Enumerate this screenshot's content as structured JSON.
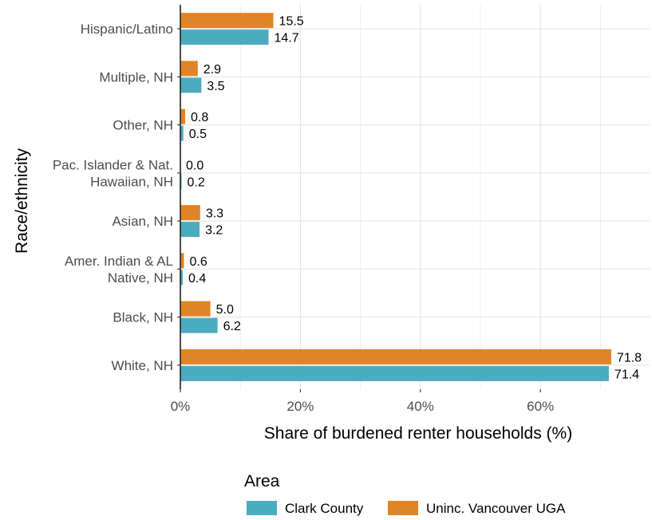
{
  "chart_data": {
    "type": "bar",
    "orientation": "horizontal",
    "xlabel": "Share of burdened renter households (%)",
    "ylabel": "Race/ethnicity",
    "xlim": [
      0,
      75
    ],
    "x_ticks": [
      0,
      20,
      40,
      60
    ],
    "x_tick_labels": [
      "0%",
      "20%",
      "40%",
      "60%"
    ],
    "grid": true,
    "legend": {
      "title": "Area",
      "position": "bottom"
    },
    "categories": [
      [
        "Hispanic/Latino"
      ],
      [
        "Multiple, NH"
      ],
      [
        "Other, NH"
      ],
      [
        "Pac. Islander & Nat.",
        "Hawaiian, NH"
      ],
      [
        "Asian, NH"
      ],
      [
        "Amer. Indian & AL",
        "Native, NH"
      ],
      [
        "Black, NH"
      ],
      [
        "White, NH"
      ]
    ],
    "series": [
      {
        "name": "Uninc. Vancouver UGA",
        "color": "#e08527",
        "values": [
          15.5,
          2.9,
          0.8,
          0.0,
          3.3,
          0.6,
          5.0,
          71.8
        ],
        "labels": [
          "15.5",
          "2.9",
          "0.8",
          "0.0",
          "3.3",
          "0.6",
          "5.0",
          "71.8"
        ]
      },
      {
        "name": "Clark County",
        "color": "#4bacc0",
        "values": [
          14.7,
          3.5,
          0.5,
          0.2,
          3.2,
          0.4,
          6.2,
          71.4
        ],
        "labels": [
          "14.7",
          "3.5",
          "0.5",
          "0.2",
          "3.2",
          "0.4",
          "6.2",
          "71.4"
        ]
      }
    ],
    "legend_order": [
      "Clark County",
      "Uninc. Vancouver UGA"
    ]
  }
}
